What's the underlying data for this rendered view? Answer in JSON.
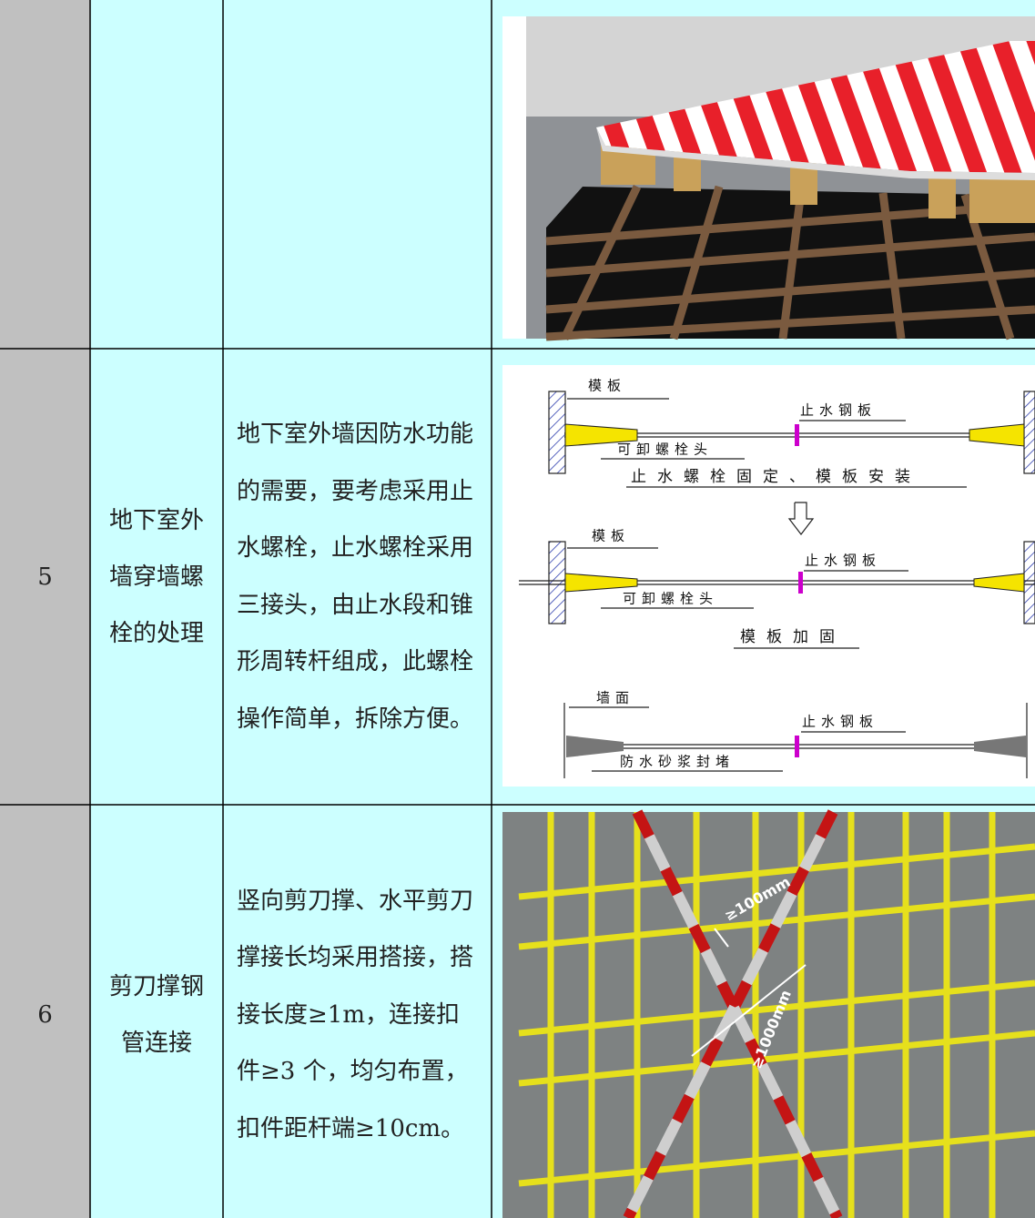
{
  "table": {
    "rows": [
      {
        "no": "5",
        "item": "地下室外墙穿墙螺栓的处理",
        "description": "地下室外墙因防水功能的需要，要考虑采用止水螺栓，止水螺栓采用三接头，由止水段和锥形周转杆组成，此螺栓操作简单，拆除方便。",
        "figure": {
          "labels": [
            "模板",
            "止水钢板",
            "可卸螺栓头",
            "止水螺栓固定、模板安装",
            "模板",
            "止水钢板",
            "可卸螺栓头",
            "模板加固",
            "墙面",
            "止水钢板",
            "防水砂浆封堵"
          ]
        }
      },
      {
        "no": "6",
        "item": "剪刀撑钢管连接",
        "description": "竖向剪刀撑、水平剪刀撑接长均采用搭接，搭接长度≥1m，连接扣件≥3 个，均匀布置，扣件距杆端≥10cm。",
        "figure": {
          "labels": [
            "≥100mm",
            "≥1000mm"
          ]
        }
      }
    ]
  }
}
